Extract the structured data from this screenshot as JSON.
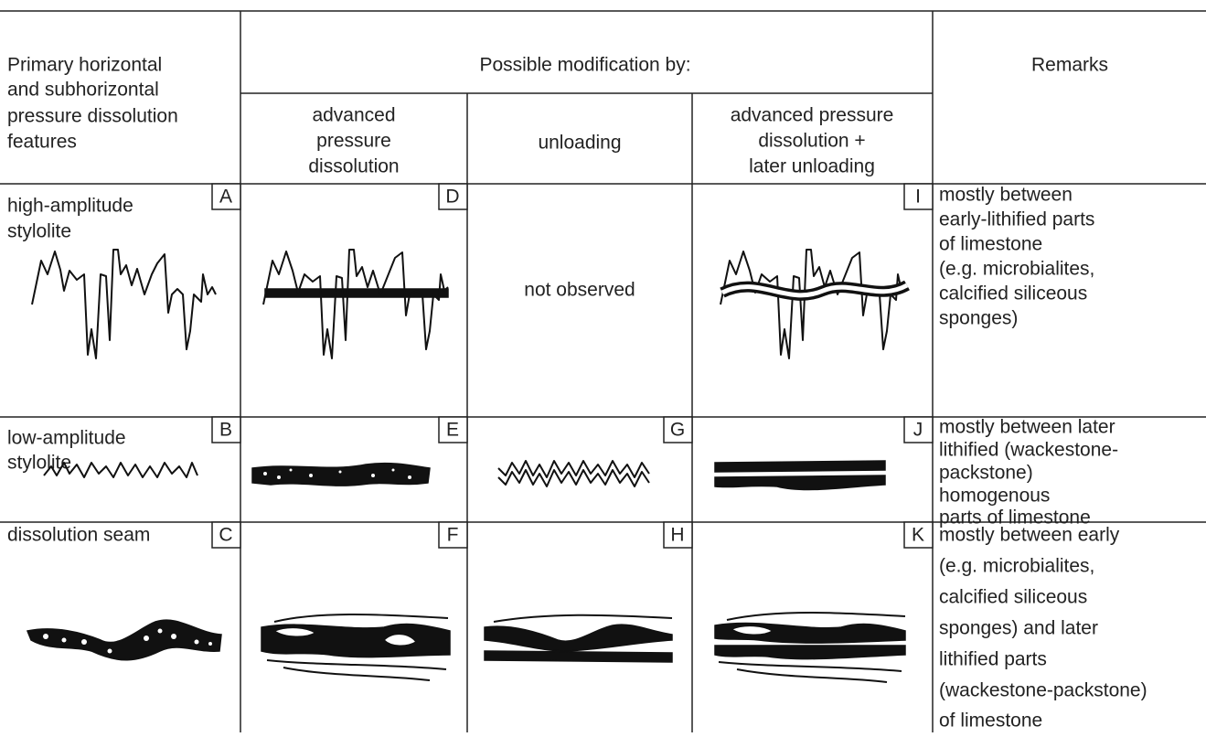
{
  "header": {
    "features": [
      "Primary horizontal",
      "and subhorizontal",
      "pressure dissolution",
      "features"
    ],
    "modification": "Possible modification by:",
    "subcolumns": [
      [
        "advanced",
        "pressure",
        "dissolution"
      ],
      [
        "unloading"
      ],
      [
        "advanced pressure",
        "dissolution +",
        "later unloading"
      ]
    ],
    "remarks": "Remarks"
  },
  "rows": [
    {
      "feature": [
        "high-amplitude",
        "stylolite"
      ],
      "label": "A",
      "cells": [
        {
          "label": "D"
        },
        {
          "text": "not observed"
        },
        {
          "label": "I"
        }
      ],
      "remarks": [
        "mostly between",
        "early-lithified parts",
        "of limestone",
        "(e.g. microbialites,",
        "calcified siliceous",
        "sponges)"
      ]
    },
    {
      "feature": [
        "low-amplitude",
        "stylolite"
      ],
      "label": "B",
      "cells": [
        {
          "label": "E"
        },
        {
          "label": "G"
        },
        {
          "label": "J"
        }
      ],
      "remarks": [
        "mostly between later",
        "lithified (wackestone-",
        "packstone)",
        "homogenous",
        "parts of limestone"
      ]
    },
    {
      "feature": [
        "dissolution seam"
      ],
      "label": "C",
      "cells": [
        {
          "label": "F"
        },
        {
          "label": "H"
        },
        {
          "label": "K"
        }
      ],
      "remarks": [
        "mostly between early",
        "(e.g. microbialites,",
        "calcified siliceous",
        "sponges) and later",
        "lithified parts",
        "(wackestone-packstone)",
        "of limestone"
      ]
    }
  ]
}
